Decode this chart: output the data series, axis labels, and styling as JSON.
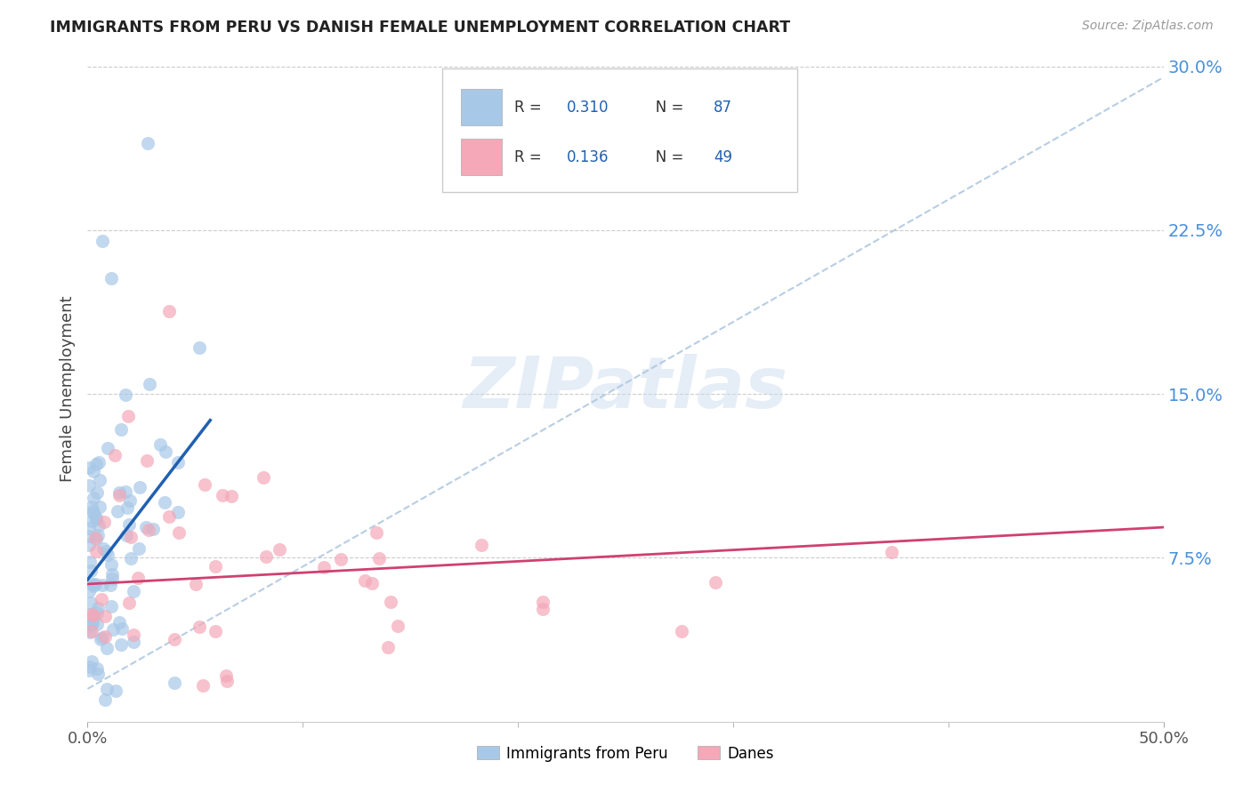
{
  "title": "IMMIGRANTS FROM PERU VS DANISH FEMALE UNEMPLOYMENT CORRELATION CHART",
  "source": "Source: ZipAtlas.com",
  "ylabel": "Female Unemployment",
  "watermark": "ZIPatlas",
  "legend_blue_R": "0.310",
  "legend_blue_N": "87",
  "legend_pink_R": "0.136",
  "legend_pink_N": "49",
  "legend_label1": "Immigrants from Peru",
  "legend_label2": "Danes",
  "blue_color": "#a8c8e8",
  "pink_color": "#f4a8b8",
  "blue_line_color": "#2060b0",
  "pink_line_color": "#d04070",
  "dashed_line_color": "#b0c8e0",
  "right_axis_color": "#4a90d9",
  "xlim_max": 0.5,
  "ylim_max": 0.305,
  "ytick_vals": [
    0.075,
    0.15,
    0.225,
    0.3
  ],
  "ytick_labels": [
    "7.5%",
    "15.0%",
    "22.5%",
    "30.0%"
  ],
  "blue_seed": 42,
  "pink_seed": 99
}
